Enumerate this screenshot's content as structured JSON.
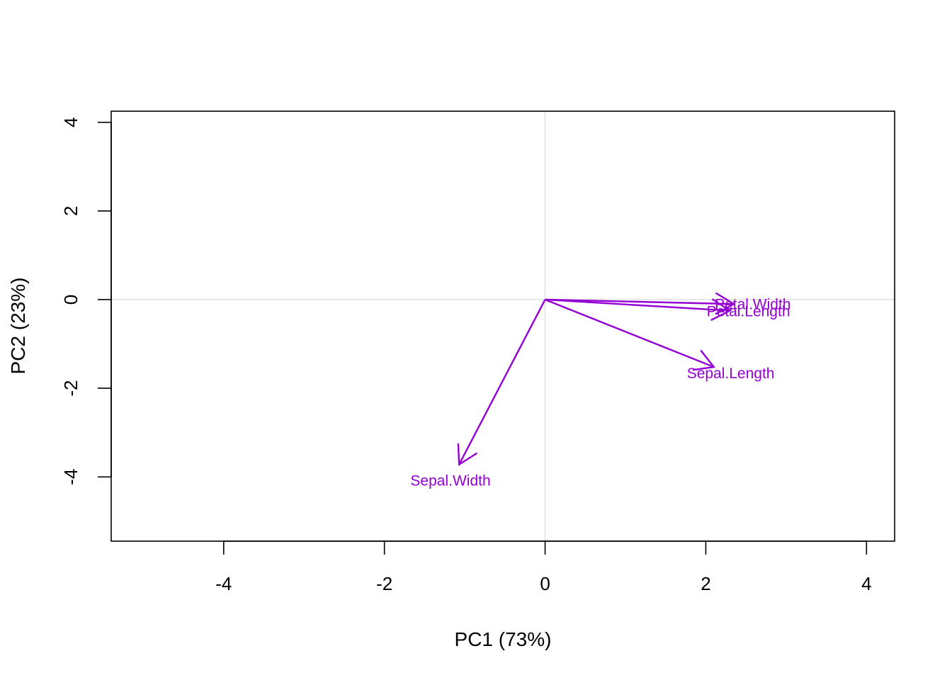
{
  "chart_data": {
    "type": "biplot-loadings",
    "title": "",
    "xlabel": "PC1 (73%)",
    "ylabel": "PC2 (23%)",
    "xlim": [
      -5.4,
      4.35
    ],
    "ylim": [
      -5.45,
      4.25
    ],
    "x_ticks": [
      -4,
      -2,
      0,
      2,
      4
    ],
    "y_ticks": [
      -4,
      -2,
      0,
      2,
      4
    ],
    "x_tick_labels": [
      "-4",
      "-2",
      "0",
      "2",
      "4"
    ],
    "y_tick_labels": [
      "-4",
      "-2",
      "0",
      "2",
      "4"
    ],
    "reference_lines": {
      "x": 0,
      "y": 0,
      "color": "#e0e0e0"
    },
    "vector_color": "#9400d3",
    "vectors": [
      {
        "name": "Petal.Width",
        "x": 2.35,
        "y": -0.1
      },
      {
        "name": "Petal.Length",
        "x": 2.3,
        "y": -0.25
      },
      {
        "name": "Sepal.Length",
        "x": 2.1,
        "y": -1.52
      },
      {
        "name": "Sepal.Width",
        "x": -1.07,
        "y": -3.72
      }
    ]
  }
}
